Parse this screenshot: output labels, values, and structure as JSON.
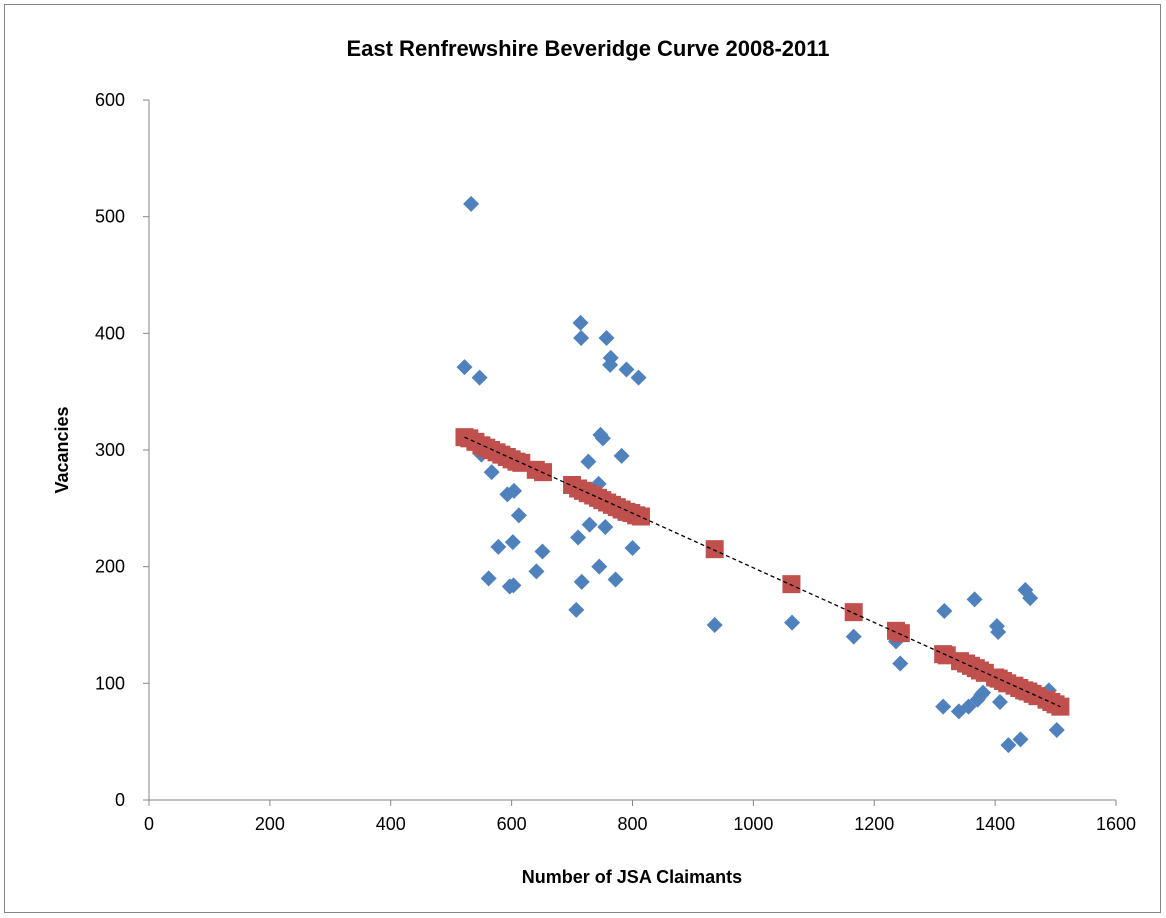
{
  "chart_data": {
    "type": "scatter",
    "title": "East Renfrewshire Beveridge Curve 2008-2011",
    "xlabel": "Number of JSA Claimants",
    "ylabel": "Vacancies",
    "xlim": [
      0,
      1600
    ],
    "ylim": [
      0,
      600
    ],
    "xticks": [
      0,
      200,
      400,
      600,
      800,
      1000,
      1200,
      1400,
      1600
    ],
    "yticks": [
      0,
      100,
      200,
      300,
      400,
      500,
      600
    ],
    "grid": false,
    "legend": "none",
    "trendline": {
      "style": "dashed",
      "color": "#000000",
      "x": [
        522,
        1508
      ],
      "y": [
        311,
        80
      ]
    },
    "series": [
      {
        "marker": "diamond",
        "color": "#4F81BD",
        "x": [
          533,
          522,
          547,
          550,
          562,
          567,
          578,
          593,
          597,
          602,
          603,
          604,
          612,
          641,
          651,
          707,
          710,
          714,
          715,
          716,
          727,
          729,
          744,
          745,
          747,
          751,
          755,
          757,
          763,
          764,
          772,
          782,
          790,
          800,
          810,
          936,
          1064,
          1166,
          1236,
          1243,
          1314,
          1316,
          1340,
          1356,
          1366,
          1371,
          1377,
          1380,
          1403,
          1405,
          1408,
          1422,
          1428,
          1440,
          1442,
          1450,
          1458,
          1483,
          1489,
          1502
        ],
        "y": [
          511,
          371,
          362,
          296,
          190,
          281,
          217,
          262,
          183,
          221,
          184,
          265,
          244,
          196,
          213,
          163,
          225,
          409,
          396,
          187,
          290,
          236,
          271,
          200,
          313,
          310,
          234,
          396,
          373,
          379,
          189,
          295,
          369,
          216,
          362,
          150,
          152,
          140,
          136,
          117,
          80,
          162,
          76,
          80,
          172,
          86,
          90,
          92,
          149,
          144,
          84,
          47,
          96,
          92,
          52,
          180,
          173,
          86,
          94,
          60
        ]
      },
      {
        "marker": "square",
        "color": "#C0504D",
        "x": [
          522,
          530,
          540,
          550,
          558,
          566,
          575,
          583,
          592,
          600,
          608,
          616,
          640,
          652,
          700,
          710,
          718,
          726,
          735,
          743,
          750,
          758,
          766,
          774,
          782,
          790,
          798,
          806,
          814,
          936,
          1063,
          1166,
          1236,
          1244,
          1314,
          1320,
          1342,
          1352,
          1360,
          1368,
          1375,
          1383,
          1400,
          1406,
          1413,
          1420,
          1432,
          1440,
          1448,
          1455,
          1462,
          1470,
          1485,
          1493,
          1500,
          1508
        ],
        "y": [
          311,
          310,
          307,
          304,
          302,
          300,
          298,
          296,
          294,
          292,
          290,
          289,
          283,
          281,
          270,
          267,
          265,
          263,
          261,
          259,
          257,
          255,
          253,
          251,
          249,
          247,
          246,
          244,
          243,
          215,
          185,
          161,
          145,
          143,
          125,
          124,
          119,
          117,
          115,
          113,
          111,
          109,
          105,
          104,
          102,
          100,
          98,
          96,
          94,
          93,
          91,
          89,
          86,
          84,
          82,
          80
        ]
      }
    ]
  }
}
